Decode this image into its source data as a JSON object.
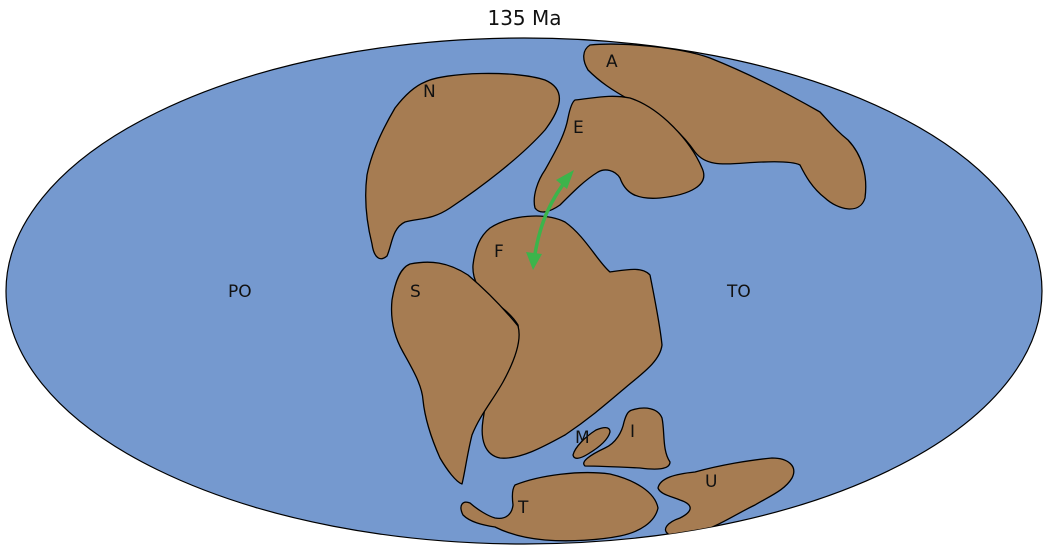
{
  "title": "135 Ma",
  "colors": {
    "ocean": "#7599cf",
    "land": "#a67c52",
    "outline": "#000000",
    "arrow": "#3cb44b"
  },
  "oceans": {
    "pacific": "PO",
    "tethys": "TO"
  },
  "landmasses": {
    "north_america": "N",
    "south_america": "S",
    "europe": "E",
    "asia": "A",
    "africa": "F",
    "madagascar": "M",
    "india": "I",
    "australia": "U",
    "antarctica": "T"
  },
  "arrow": {
    "icon": "double-headed-arrow-icon",
    "between": [
      "E",
      "F"
    ]
  }
}
